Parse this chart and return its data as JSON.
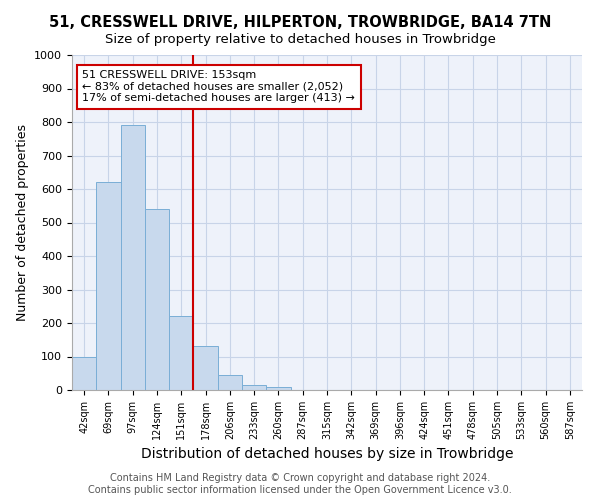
{
  "title": "51, CRESSWELL DRIVE, HILPERTON, TROWBRIDGE, BA14 7TN",
  "subtitle": "Size of property relative to detached houses in Trowbridge",
  "xlabel": "Distribution of detached houses by size in Trowbridge",
  "ylabel": "Number of detached properties",
  "bin_labels": [
    "42sqm",
    "69sqm",
    "97sqm",
    "124sqm",
    "151sqm",
    "178sqm",
    "206sqm",
    "233sqm",
    "260sqm",
    "287sqm",
    "315sqm",
    "342sqm",
    "369sqm",
    "396sqm",
    "424sqm",
    "451sqm",
    "478sqm",
    "505sqm",
    "533sqm",
    "560sqm",
    "587sqm"
  ],
  "bar_heights": [
    100,
    620,
    790,
    540,
    220,
    130,
    45,
    15,
    10,
    0,
    0,
    0,
    0,
    0,
    0,
    0,
    0,
    0,
    0,
    0,
    0
  ],
  "bar_color": "#c8d9ed",
  "bar_edge_color": "#7aaed6",
  "property_line_x": 4.5,
  "property_line_color": "#cc0000",
  "ylim": [
    0,
    1000
  ],
  "annotation_text": "51 CRESSWELL DRIVE: 153sqm\n← 83% of detached houses are smaller (2,052)\n17% of semi-detached houses are larger (413) →",
  "annotation_box_color": "#ffffff",
  "annotation_box_edge_color": "#cc0000",
  "footer_line1": "Contains HM Land Registry data © Crown copyright and database right 2024.",
  "footer_line2": "Contains public sector information licensed under the Open Government Licence v3.0.",
  "title_fontsize": 10.5,
  "subtitle_fontsize": 9.5,
  "xlabel_fontsize": 10,
  "ylabel_fontsize": 9,
  "annotation_fontsize": 8,
  "footer_fontsize": 7,
  "grid_color": "#c8d4e8",
  "background_color": "#ffffff",
  "ax_background_color": "#eef2fa"
}
